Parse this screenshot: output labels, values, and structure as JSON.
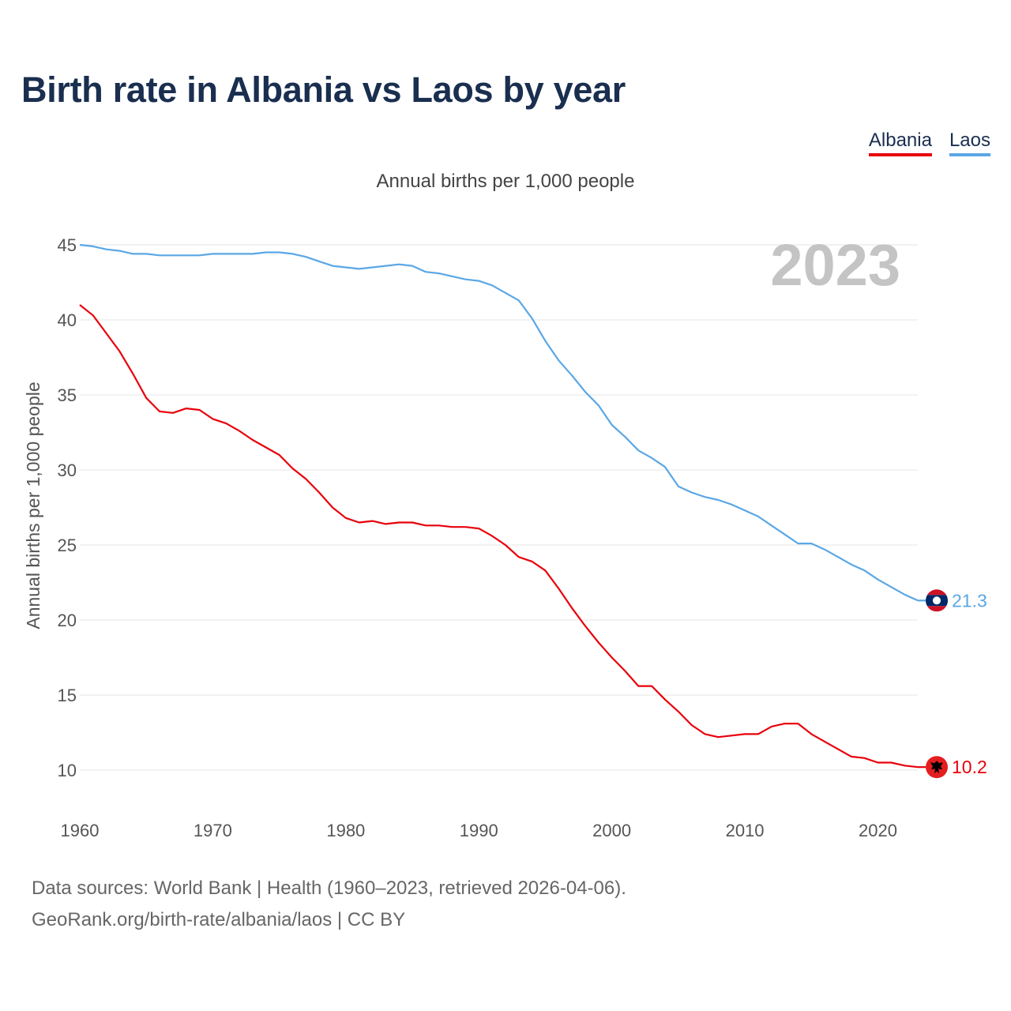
{
  "title": "Birth rate in Albania vs Laos by year",
  "subtitle": "Annual births per 1,000 people",
  "legend": [
    {
      "name": "Albania",
      "color": "#e8000b"
    },
    {
      "name": "Laos",
      "color": "#5aa7e6"
    }
  ],
  "year_watermark": "2023",
  "footer": {
    "line1": "Data sources: World Bank | Health (1960–2023, retrieved 2026-04-06).",
    "line2": "GeoRank.org/birth-rate/albania/laos | CC BY"
  },
  "icons": {
    "albania_flag": "albania-flag-icon",
    "laos_flag": "laos-flag-icon"
  },
  "chart_data": {
    "type": "line",
    "title": "Birth rate in Albania vs Laos by year",
    "ylabel": "Annual births per 1,000 people",
    "xlabel": "",
    "xlim": [
      1960,
      2023
    ],
    "ylim": [
      8,
      46
    ],
    "yticks": [
      10,
      15,
      20,
      25,
      30,
      35,
      40,
      45
    ],
    "xticks": [
      1960,
      1970,
      1980,
      1990,
      2000,
      2010,
      2020
    ],
    "x": [
      1960,
      1961,
      1962,
      1963,
      1964,
      1965,
      1966,
      1967,
      1968,
      1969,
      1970,
      1971,
      1972,
      1973,
      1974,
      1975,
      1976,
      1977,
      1978,
      1979,
      1980,
      1981,
      1982,
      1983,
      1984,
      1985,
      1986,
      1987,
      1988,
      1989,
      1990,
      1991,
      1992,
      1993,
      1994,
      1995,
      1996,
      1997,
      1998,
      1999,
      2000,
      2001,
      2002,
      2003,
      2004,
      2005,
      2006,
      2007,
      2008,
      2009,
      2010,
      2011,
      2012,
      2013,
      2014,
      2015,
      2016,
      2017,
      2018,
      2019,
      2020,
      2021,
      2022,
      2023
    ],
    "series": [
      {
        "name": "Albania",
        "color": "#e8000b",
        "end_label": "10.2",
        "values": [
          41.0,
          40.3,
          39.1,
          37.9,
          36.4,
          34.8,
          33.9,
          33.8,
          34.1,
          34.0,
          33.4,
          33.1,
          32.6,
          32.0,
          31.5,
          31.0,
          30.1,
          29.4,
          28.5,
          27.5,
          26.8,
          26.5,
          26.6,
          26.4,
          26.5,
          26.5,
          26.3,
          26.3,
          26.2,
          26.2,
          26.1,
          25.6,
          25.0,
          24.2,
          23.9,
          23.3,
          22.1,
          20.8,
          19.6,
          18.5,
          17.5,
          16.6,
          15.6,
          15.6,
          14.7,
          13.9,
          13.0,
          12.4,
          12.2,
          12.3,
          12.4,
          12.4,
          12.9,
          13.1,
          13.1,
          12.4,
          11.9,
          11.4,
          10.9,
          10.8,
          10.5,
          10.5,
          10.3,
          10.2
        ]
      },
      {
        "name": "Laos",
        "color": "#5aa7e6",
        "end_label": "21.3",
        "values": [
          45.0,
          44.9,
          44.7,
          44.6,
          44.4,
          44.4,
          44.3,
          44.3,
          44.3,
          44.3,
          44.4,
          44.4,
          44.4,
          44.4,
          44.5,
          44.5,
          44.4,
          44.2,
          43.9,
          43.6,
          43.5,
          43.4,
          43.5,
          43.6,
          43.7,
          43.6,
          43.2,
          43.1,
          42.9,
          42.7,
          42.6,
          42.3,
          41.8,
          41.3,
          40.1,
          38.6,
          37.3,
          36.3,
          35.2,
          34.3,
          33.0,
          32.2,
          31.3,
          30.8,
          30.2,
          28.9,
          28.5,
          28.2,
          28.0,
          27.7,
          27.3,
          26.9,
          26.3,
          25.7,
          25.1,
          25.1,
          24.7,
          24.2,
          23.7,
          23.3,
          22.7,
          22.2,
          21.7,
          21.3
        ]
      }
    ]
  }
}
